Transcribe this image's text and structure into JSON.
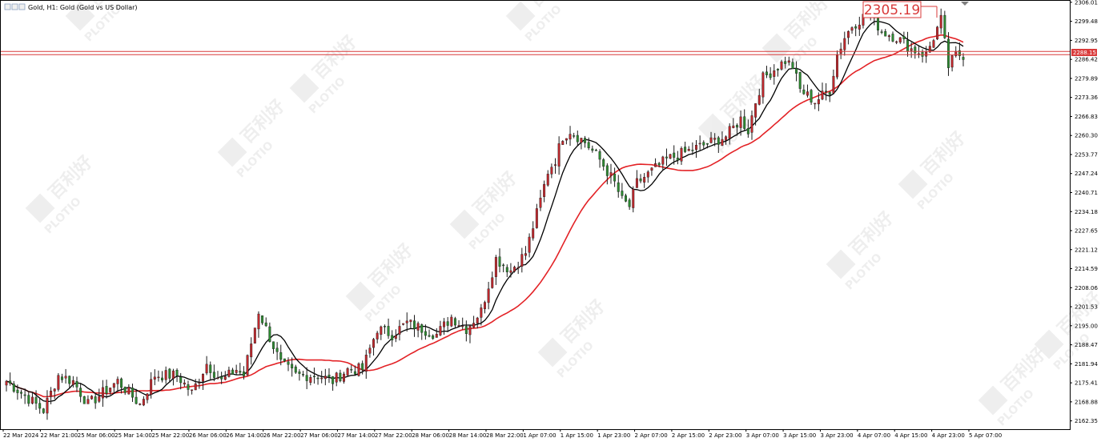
{
  "window": {
    "title": "Gold, H1:  Gold (Gold vs US Dollar)"
  },
  "watermark": {
    "brand": "PLOTIO",
    "chinese": "百利好"
  },
  "colors": {
    "background": "#ffffff",
    "bull": "#c0282d",
    "bear": "#2e8b32",
    "ma_fast": "#000000",
    "ma_slow": "#e32226",
    "price_line": "#d93a3a",
    "axis": "#000000"
  },
  "chart_data": {
    "type": "candlestick",
    "symbol": "Gold",
    "timeframe": "H1",
    "y_ticks": [
      "2306.01",
      "2299.48",
      "2292.95",
      "2286.42",
      "2279.89",
      "2273.36",
      "2266.83",
      "2260.30",
      "2253.77",
      "2247.24",
      "2240.71",
      "2234.18",
      "2227.65",
      "2221.12",
      "2214.59",
      "2208.06",
      "2201.53",
      "2195.00",
      "2188.47",
      "2181.94",
      "2175.41",
      "2168.88",
      "2162.35"
    ],
    "ylim": [
      2159.5,
      2306.8
    ],
    "x_ticks": [
      "22 Mar 2024",
      "22 Mar 21:00",
      "25 Mar 06:00",
      "25 Mar 14:00",
      "25 Mar 22:00",
      "26 Mar 06:00",
      "26 Mar 14:00",
      "26 Mar 22:00",
      "27 Mar 06:00",
      "27 Mar 14:00",
      "27 Mar 22:00",
      "28 Mar 06:00",
      "28 Mar 14:00",
      "28 Mar 22:00",
      "1 Apr 07:00",
      "1 Apr 15:00",
      "1 Apr 23:00",
      "2 Apr 07:00",
      "2 Apr 15:00",
      "2 Apr 23:00",
      "3 Apr 07:00",
      "3 Apr 15:00",
      "3 Apr 23:00",
      "4 Apr 07:00",
      "4 Apr 15:00",
      "4 Apr 23:00",
      "5 Apr 07:00"
    ],
    "current_price": "2288.15",
    "highlight_label": "2305.19",
    "horizontal_line": 2288.6,
    "close_anchors": [
      [
        0,
        2176
      ],
      [
        6,
        2170
      ],
      [
        10,
        2166
      ],
      [
        14,
        2178
      ],
      [
        18,
        2176
      ],
      [
        22,
        2168
      ],
      [
        26,
        2172
      ],
      [
        30,
        2176
      ],
      [
        36,
        2168
      ],
      [
        40,
        2178
      ],
      [
        46,
        2178
      ],
      [
        50,
        2172
      ],
      [
        54,
        2182
      ],
      [
        58,
        2176
      ],
      [
        62,
        2180
      ],
      [
        64,
        2178
      ],
      [
        68,
        2200
      ],
      [
        70,
        2194
      ],
      [
        72,
        2188
      ],
      [
        74,
        2182
      ],
      [
        78,
        2178
      ],
      [
        84,
        2178
      ],
      [
        88,
        2176
      ],
      [
        92,
        2180
      ],
      [
        96,
        2180
      ],
      [
        100,
        2194
      ],
      [
        104,
        2192
      ],
      [
        108,
        2196
      ],
      [
        112,
        2194
      ],
      [
        116,
        2192
      ],
      [
        120,
        2198
      ],
      [
        124,
        2194
      ],
      [
        128,
        2200
      ],
      [
        132,
        2218
      ],
      [
        136,
        2214
      ],
      [
        140,
        2220
      ],
      [
        144,
        2238
      ],
      [
        146,
        2248
      ],
      [
        148,
        2252
      ],
      [
        150,
        2260
      ],
      [
        152,
        2262
      ],
      [
        156,
        2258
      ],
      [
        160,
        2252
      ],
      [
        164,
        2244
      ],
      [
        166,
        2238
      ],
      [
        168,
        2236
      ],
      [
        170,
        2244
      ],
      [
        174,
        2248
      ],
      [
        178,
        2252
      ],
      [
        182,
        2254
      ],
      [
        186,
        2256
      ],
      [
        190,
        2258
      ],
      [
        194,
        2260
      ],
      [
        198,
        2266
      ],
      [
        200,
        2262
      ],
      [
        202,
        2272
      ],
      [
        204,
        2280
      ],
      [
        206,
        2282
      ],
      [
        210,
        2286
      ],
      [
        212,
        2284
      ],
      [
        214,
        2276
      ],
      [
        218,
        2272
      ],
      [
        222,
        2276
      ],
      [
        224,
        2288
      ],
      [
        226,
        2294
      ],
      [
        228,
        2298
      ],
      [
        232,
        2302
      ],
      [
        234,
        2300
      ],
      [
        236,
        2296
      ],
      [
        240,
        2294
      ],
      [
        244,
        2290
      ],
      [
        248,
        2288
      ],
      [
        250,
        2294
      ],
      [
        252,
        2300
      ],
      [
        254,
        2284
      ],
      [
        256,
        2288
      ],
      [
        258,
        2288
      ]
    ]
  }
}
